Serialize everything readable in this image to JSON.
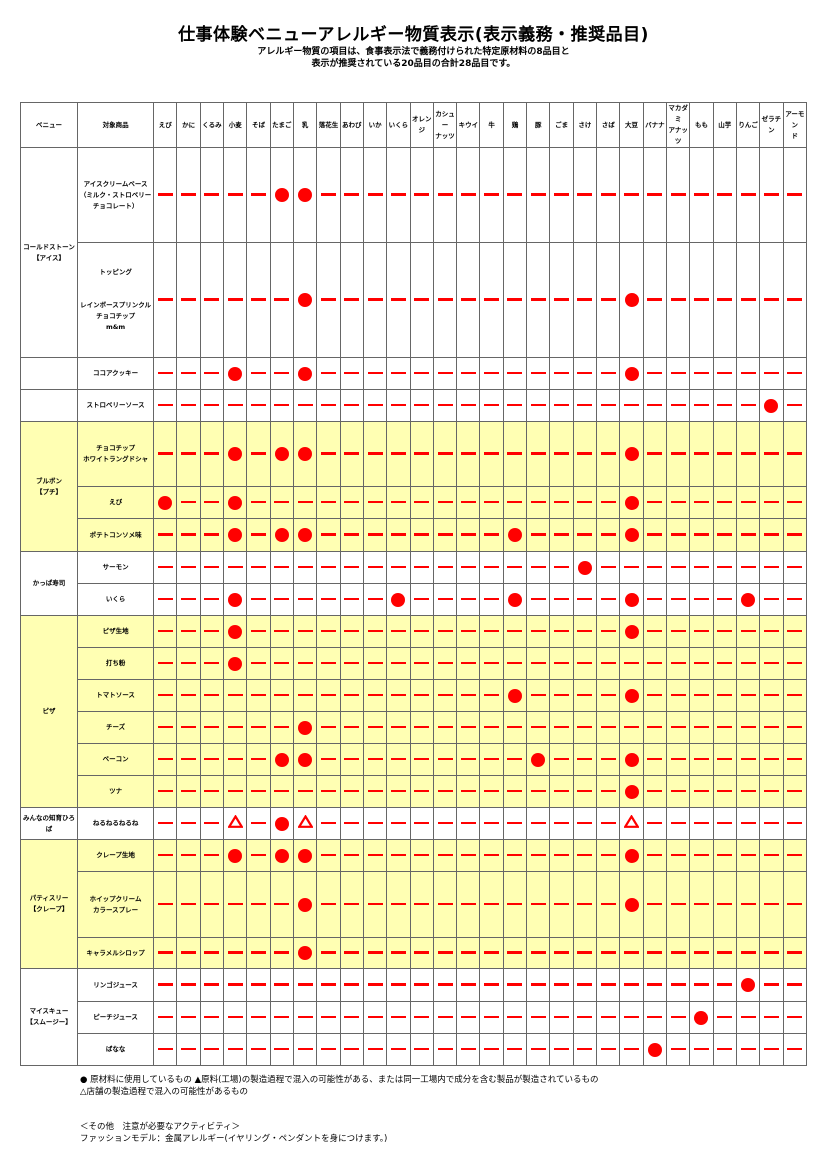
{
  "title": "仕事体験ベニューアレルギー物質表示(表示義務・推奨品目)",
  "subtitle_line1": "アレルギー物質の項目は、食事表示法で義務付けられた特定原材料の8品目と",
  "subtitle_line2": "表示が推奨されている20品目の合計28品目です。",
  "headers": {
    "venue": "ベニュー",
    "product": "対象商品",
    "allergens": [
      "えび",
      "かに",
      "くるみ",
      "小麦",
      "そば",
      "たまご",
      "乳",
      "落花生",
      "あわび",
      "いか",
      "いくら",
      "オレンジ",
      "カシュー\nナッツ",
      "キウイ",
      "牛",
      "鶏",
      "豚",
      "ごま",
      "さけ",
      "さば",
      "大豆",
      "バナナ",
      "マカダミ\nアナッツ",
      "もも",
      "山芋",
      "りんご",
      "ゼラチン",
      "アーモン\nド"
    ]
  },
  "mark_legend": {
    "o": "circle",
    "t": "triangle",
    "-": "dash"
  },
  "colors": {
    "mark": "#ff0000",
    "highlight_row": "#ffffb3"
  },
  "venues": [
    {
      "name": "コールドストーン\n【アイス】",
      "bg": "white",
      "items": [
        {
          "name": "アイスクリームベース\n（ミルク・ストロベリー\nチョコレート）",
          "marks": "-----oo---------------------"
        },
        {
          "name": "トッピング\n\n\nレインボースプリンクル\nチョコチップ\nm&m",
          "marks": "------o-------------o-------"
        }
      ]
    },
    {
      "name": "",
      "bg": "white",
      "items": [
        {
          "name": "ココアクッキー",
          "marks": "---o--o-------------o-------"
        }
      ]
    },
    {
      "name": "",
      "bg": "white",
      "items": [
        {
          "name": "ストロベリーソース",
          "marks": "--------------------------o-"
        }
      ]
    },
    {
      "name": "ブルボン\n【プチ】",
      "bg": "yellow",
      "items": [
        {
          "name": "チョコチップ\nホワイトラングドシャ",
          "marks": "---o-oo-------------o-------"
        },
        {
          "name": "えび",
          "marks": "o--o----------------o-------"
        },
        {
          "name": "ポテトコンソメ味",
          "marks": "---o-oo--------o----o-------"
        }
      ]
    },
    {
      "name": "かっぱ寿司",
      "bg": "white",
      "items": [
        {
          "name": "サーモン",
          "marks": "------------------o---------"
        },
        {
          "name": "いくら",
          "marks": "---o------o----o----o----o--"
        }
      ]
    },
    {
      "name": "ピザ",
      "bg": "yellow",
      "items": [
        {
          "name": "ピザ生地",
          "marks": "---o----------------o-------"
        },
        {
          "name": "打ち粉",
          "marks": "---o------------------------"
        },
        {
          "name": "トマトソース",
          "marks": "---------------o----o-------"
        },
        {
          "name": "チーズ",
          "marks": "------o---------------------"
        },
        {
          "name": "ベーコン",
          "marks": "-----oo---------o---o-------"
        },
        {
          "name": "ツナ",
          "marks": "--------------------o-------"
        }
      ]
    },
    {
      "name": "みんなの知育ひろば",
      "bg": "white",
      "items": [
        {
          "name": "ねるねるねるね",
          "marks": "---t-ot-------------t-------"
        }
      ]
    },
    {
      "name": "パティスリー\n【クレープ】",
      "bg": "yellow",
      "items": [
        {
          "name": "クレープ生地",
          "marks": "---o-oo-------------o-------"
        },
        {
          "name": "ホイップクリーム\nカラースプレー",
          "marks": "------o-------------o-------"
        },
        {
          "name": "キャラメルシロップ",
          "marks": "------o---------------------"
        }
      ]
    },
    {
      "name": "マイスキュー\n【スムージー】",
      "bg": "white",
      "items": [
        {
          "name": "リンゴジュース",
          "marks": "-------------------------o--"
        },
        {
          "name": "ピーチジュース",
          "marks": "-----------------------o----"
        },
        {
          "name": "ばなな",
          "marks": "---------------------o------"
        }
      ]
    }
  ],
  "legend_line1": "● 原材料に使用しているもの ▲原料(工場)の製造過程で混入の可能性がある、または同一工場内で成分を含む製品が製造されているもの",
  "legend_line2": "△店舗の製造過程で混入の可能性があるもの",
  "other_heading": "＜その他　注意が必要なアクティビティ＞",
  "other_line": "ファッションモデル：金属アレルギー(イヤリング・ペンダントを身につけます。)"
}
